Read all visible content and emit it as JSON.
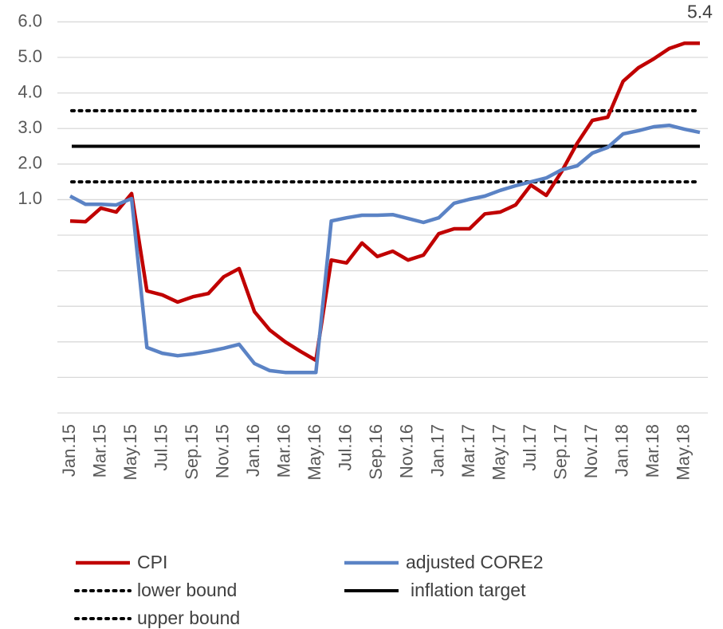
{
  "chart_data": {
    "type": "line",
    "categories": [
      "Jan.15",
      null,
      "Mar.15",
      null,
      "May.15",
      null,
      "Jul.15",
      null,
      "Sep.15",
      null,
      "Nov.15",
      null,
      "Jan.16",
      null,
      "Mar.16",
      null,
      "May.16",
      null,
      "Jul.16",
      null,
      "Sep.16",
      null,
      "Nov.16",
      null,
      "Jan.17",
      null,
      "Mar.17",
      null,
      "May.17",
      null,
      "Jul.17",
      null,
      "Sep.17",
      null,
      "Nov.17",
      null,
      "Jan.18",
      null,
      "Mar.18",
      null,
      "May.18",
      null
    ],
    "series": [
      {
        "name": "CPI",
        "color": "#c00000",
        "values": [
          0.4,
          0.38,
          0.76,
          0.65,
          1.17,
          -1.57,
          -1.68,
          -1.88,
          -1.73,
          -1.64,
          -1.17,
          -0.94,
          -2.15,
          -2.67,
          -3.0,
          -3.27,
          -3.52,
          -0.7,
          -0.78,
          -0.22,
          -0.6,
          -0.45,
          -0.7,
          -0.56,
          0.04,
          0.18,
          0.18,
          0.6,
          0.65,
          0.85,
          1.41,
          1.12,
          1.79,
          2.58,
          3.23,
          3.32,
          4.33,
          4.71,
          4.96,
          5.25,
          5.4,
          5.4
        ],
        "value_labels": [
          null,
          null,
          null,
          null,
          null,
          null,
          null,
          null,
          null,
          null,
          null,
          null,
          null,
          null,
          null,
          null,
          null,
          null,
          null,
          null,
          null,
          null,
          null,
          null,
          null,
          null,
          null,
          null,
          null,
          null,
          null,
          null,
          null,
          null,
          null,
          null,
          null,
          null,
          null,
          null,
          null,
          "5.4"
        ]
      },
      {
        "name": "adjusted CORE2",
        "color": "#5b83c5",
        "values": [
          1.1,
          0.87,
          0.87,
          0.85,
          1.03,
          -3.16,
          -3.32,
          -3.39,
          -3.34,
          -3.27,
          -3.18,
          -3.07,
          -3.61,
          -3.81,
          -3.86,
          -3.86,
          -3.86,
          0.4,
          0.49,
          0.56,
          0.56,
          0.58,
          0.47,
          0.36,
          0.49,
          0.9,
          1.01,
          1.1,
          1.26,
          1.39,
          1.5,
          1.61,
          1.84,
          1.95,
          2.31,
          2.47,
          2.85,
          2.94,
          3.05,
          3.09,
          2.98,
          2.89
        ]
      }
    ],
    "reference_lines": [
      {
        "name": "lower bound",
        "value": 1.5,
        "color": "#000000",
        "style": "dotted"
      },
      {
        "name": "inflation target",
        "value": 2.5,
        "color": "#000000",
        "style": "solid"
      },
      {
        "name": "upper bound",
        "value": 3.5,
        "color": "#000000",
        "style": "dotted"
      }
    ],
    "ylim": [
      -5,
      6.4
    ],
    "yticks": [
      {
        "value": 1,
        "label": "1.0"
      },
      {
        "value": 2,
        "label": "2.0"
      },
      {
        "value": 3,
        "label": "3.0"
      },
      {
        "value": 4,
        "label": "4.0"
      },
      {
        "value": 5,
        "label": "5.0"
      },
      {
        "value": 6,
        "label": "6.0"
      }
    ],
    "unlabeled_gridlines": [
      -5,
      -4,
      -3,
      -2,
      -1,
      0
    ],
    "grid": true
  }
}
